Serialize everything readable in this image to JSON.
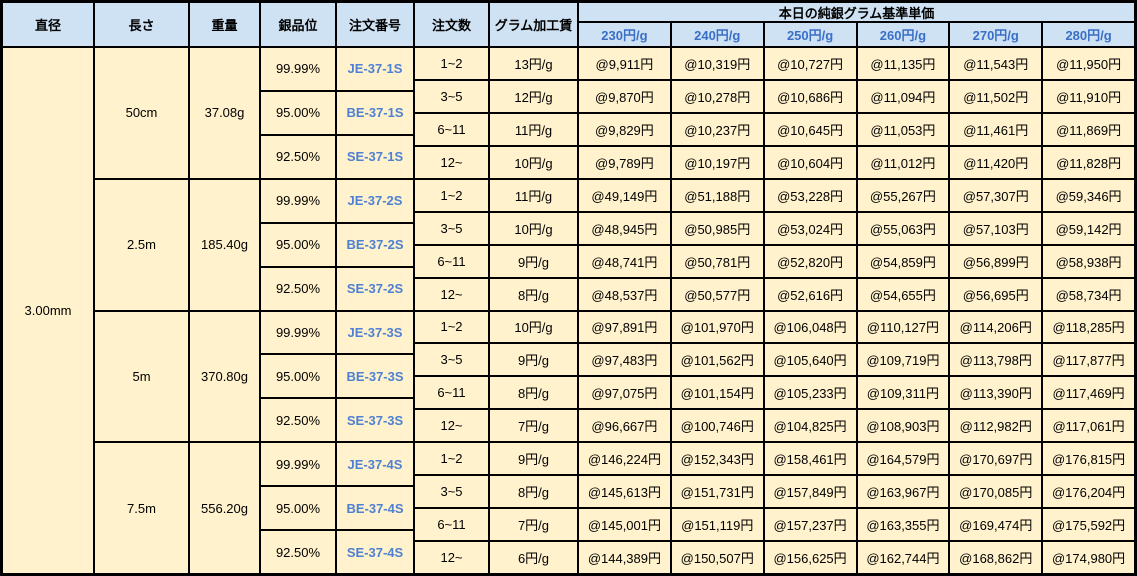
{
  "colors": {
    "header_bg": "#cfe2f3",
    "body_bg": "#fff2cc",
    "border": "#000000",
    "price_header_blue": "#3a6fc8",
    "code_blue": "#4e80d4"
  },
  "chart_data": {
    "type": "table",
    "title": "本日の純銀グラム基準単価",
    "headers": {
      "diameter": "直径",
      "length": "長さ",
      "weight": "重量",
      "purity": "銀品位",
      "order_no": "注文番号",
      "order_qty": "注文数",
      "fee": "グラム加工賃",
      "price_header": "本日の純銀グラム基準単価",
      "price_cols": [
        "230円/g",
        "240円/g",
        "250円/g",
        "260円/g",
        "270円/g",
        "280円/g"
      ]
    },
    "diameter": "3.00mm",
    "groups": [
      {
        "length": "50cm",
        "weight": "37.08g",
        "purities": [
          "99.99%",
          "95.00%",
          "92.50%"
        ],
        "codes": [
          "JE-37-1S",
          "BE-37-1S",
          "SE-37-1S"
        ],
        "rows": [
          {
            "qty": "1~2",
            "fee": "13円/g",
            "prices": [
              "@9,911円",
              "@10,319円",
              "@10,727円",
              "@11,135円",
              "@11,543円",
              "@11,950円"
            ]
          },
          {
            "qty": "3~5",
            "fee": "12円/g",
            "prices": [
              "@9,870円",
              "@10,278円",
              "@10,686円",
              "@11,094円",
              "@11,502円",
              "@11,910円"
            ]
          },
          {
            "qty": "6~11",
            "fee": "11円/g",
            "prices": [
              "@9,829円",
              "@10,237円",
              "@10,645円",
              "@11,053円",
              "@11,461円",
              "@11,869円"
            ]
          },
          {
            "qty": "12~",
            "fee": "10円/g",
            "prices": [
              "@9,789円",
              "@10,197円",
              "@10,604円",
              "@11,012円",
              "@11,420円",
              "@11,828円"
            ]
          }
        ]
      },
      {
        "length": "2.5m",
        "weight": "185.40g",
        "purities": [
          "99.99%",
          "95.00%",
          "92.50%"
        ],
        "codes": [
          "JE-37-2S",
          "BE-37-2S",
          "SE-37-2S"
        ],
        "rows": [
          {
            "qty": "1~2",
            "fee": "11円/g",
            "prices": [
              "@49,149円",
              "@51,188円",
              "@53,228円",
              "@55,267円",
              "@57,307円",
              "@59,346円"
            ]
          },
          {
            "qty": "3~5",
            "fee": "10円/g",
            "prices": [
              "@48,945円",
              "@50,985円",
              "@53,024円",
              "@55,063円",
              "@57,103円",
              "@59,142円"
            ]
          },
          {
            "qty": "6~11",
            "fee": "9円/g",
            "prices": [
              "@48,741円",
              "@50,781円",
              "@52,820円",
              "@54,859円",
              "@56,899円",
              "@58,938円"
            ]
          },
          {
            "qty": "12~",
            "fee": "8円/g",
            "prices": [
              "@48,537円",
              "@50,577円",
              "@52,616円",
              "@54,655円",
              "@56,695円",
              "@58,734円"
            ]
          }
        ]
      },
      {
        "length": "5m",
        "weight": "370.80g",
        "purities": [
          "99.99%",
          "95.00%",
          "92.50%"
        ],
        "codes": [
          "JE-37-3S",
          "BE-37-3S",
          "SE-37-3S"
        ],
        "rows": [
          {
            "qty": "1~2",
            "fee": "10円/g",
            "prices": [
              "@97,891円",
              "@101,970円",
              "@106,048円",
              "@110,127円",
              "@114,206円",
              "@118,285円"
            ]
          },
          {
            "qty": "3~5",
            "fee": "9円/g",
            "prices": [
              "@97,483円",
              "@101,562円",
              "@105,640円",
              "@109,719円",
              "@113,798円",
              "@117,877円"
            ]
          },
          {
            "qty": "6~11",
            "fee": "8円/g",
            "prices": [
              "@97,075円",
              "@101,154円",
              "@105,233円",
              "@109,311円",
              "@113,390円",
              "@117,469円"
            ]
          },
          {
            "qty": "12~",
            "fee": "7円/g",
            "prices": [
              "@96,667円",
              "@100,746円",
              "@104,825円",
              "@108,903円",
              "@112,982円",
              "@117,061円"
            ]
          }
        ]
      },
      {
        "length": "7.5m",
        "weight": "556.20g",
        "purities": [
          "99.99%",
          "95.00%",
          "92.50%"
        ],
        "codes": [
          "JE-37-4S",
          "BE-37-4S",
          "SE-37-4S"
        ],
        "rows": [
          {
            "qty": "1~2",
            "fee": "9円/g",
            "prices": [
              "@146,224円",
              "@152,343円",
              "@158,461円",
              "@164,579円",
              "@170,697円",
              "@176,815円"
            ]
          },
          {
            "qty": "3~5",
            "fee": "8円/g",
            "prices": [
              "@145,613円",
              "@151,731円",
              "@157,849円",
              "@163,967円",
              "@170,085円",
              "@176,204円"
            ]
          },
          {
            "qty": "6~11",
            "fee": "7円/g",
            "prices": [
              "@145,001円",
              "@151,119円",
              "@157,237円",
              "@163,355円",
              "@169,474円",
              "@175,592円"
            ]
          },
          {
            "qty": "12~",
            "fee": "6円/g",
            "prices": [
              "@144,389円",
              "@150,507円",
              "@156,625円",
              "@162,744円",
              "@168,862円",
              "@174,980円"
            ]
          }
        ]
      }
    ]
  }
}
